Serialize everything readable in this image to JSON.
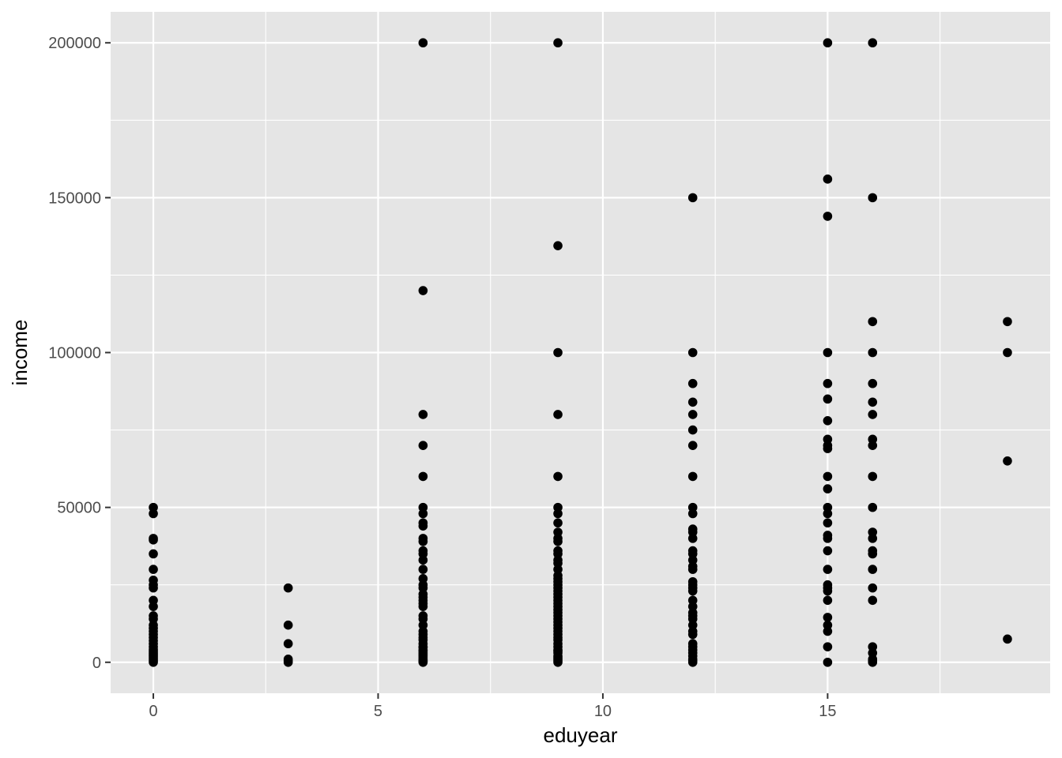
{
  "chart_data": {
    "type": "scatter",
    "title": "",
    "xlabel": "eduyear",
    "ylabel": "income",
    "xlim": [
      -0.95,
      19.95
    ],
    "ylim": [
      -10000,
      210000
    ],
    "x_ticks": [
      0,
      5,
      10,
      15
    ],
    "x_tick_labels": [
      "0",
      "5",
      "10",
      "15"
    ],
    "y_ticks": [
      0,
      50000,
      100000,
      150000,
      200000
    ],
    "y_tick_labels": [
      "0",
      "50000",
      "100000",
      "150000",
      "200000"
    ],
    "x_minor": [
      2.5,
      7.5,
      12.5,
      17.5
    ],
    "y_minor": [
      25000,
      75000,
      125000,
      175000
    ],
    "grid": true,
    "legend": "none",
    "colors": {
      "panel": "#e5e5e5",
      "grid": "#ffffff",
      "point": "#000000",
      "tick": "#4d4d4d",
      "tickmark": "#333333"
    },
    "points": [
      [
        0,
        0
      ],
      [
        0,
        500
      ],
      [
        0,
        1000
      ],
      [
        0,
        1500
      ],
      [
        0,
        2000
      ],
      [
        0,
        2500
      ],
      [
        0,
        3000
      ],
      [
        0,
        3600
      ],
      [
        0,
        4200
      ],
      [
        0,
        5000
      ],
      [
        0,
        6000
      ],
      [
        0,
        7000
      ],
      [
        0,
        8000
      ],
      [
        0,
        9000
      ],
      [
        0,
        10000
      ],
      [
        0,
        11000
      ],
      [
        0,
        12000
      ],
      [
        0,
        14000
      ],
      [
        0,
        15000
      ],
      [
        0,
        18000
      ],
      [
        0,
        20000
      ],
      [
        0,
        24000
      ],
      [
        0,
        25000
      ],
      [
        0,
        26500
      ],
      [
        0,
        30000
      ],
      [
        0,
        35000
      ],
      [
        0,
        39500
      ],
      [
        0,
        40000
      ],
      [
        0,
        48000
      ],
      [
        0,
        50000
      ],
      [
        3,
        0
      ],
      [
        3,
        500
      ],
      [
        3,
        1000
      ],
      [
        3,
        6000
      ],
      [
        3,
        12000
      ],
      [
        3,
        24000
      ],
      [
        6,
        0
      ],
      [
        6,
        300
      ],
      [
        6,
        600
      ],
      [
        6,
        1000
      ],
      [
        6,
        1500
      ],
      [
        6,
        2000
      ],
      [
        6,
        2500
      ],
      [
        6,
        3000
      ],
      [
        6,
        3600
      ],
      [
        6,
        4000
      ],
      [
        6,
        4800
      ],
      [
        6,
        5000
      ],
      [
        6,
        6000
      ],
      [
        6,
        7200
      ],
      [
        6,
        8000
      ],
      [
        6,
        9000
      ],
      [
        6,
        10000
      ],
      [
        6,
        12000
      ],
      [
        6,
        14000
      ],
      [
        6,
        15000
      ],
      [
        6,
        18000
      ],
      [
        6,
        19000
      ],
      [
        6,
        20000
      ],
      [
        6,
        21000
      ],
      [
        6,
        22000
      ],
      [
        6,
        24000
      ],
      [
        6,
        25000
      ],
      [
        6,
        27000
      ],
      [
        6,
        30000
      ],
      [
        6,
        33000
      ],
      [
        6,
        35000
      ],
      [
        6,
        36000
      ],
      [
        6,
        39000
      ],
      [
        6,
        40000
      ],
      [
        6,
        44000
      ],
      [
        6,
        45000
      ],
      [
        6,
        48000
      ],
      [
        6,
        50000
      ],
      [
        6,
        60000
      ],
      [
        6,
        70000
      ],
      [
        6,
        80000
      ],
      [
        6,
        120000
      ],
      [
        6,
        200000
      ],
      [
        9,
        0
      ],
      [
        9,
        500
      ],
      [
        9,
        1000
      ],
      [
        9,
        1500
      ],
      [
        9,
        2000
      ],
      [
        9,
        3000
      ],
      [
        9,
        3600
      ],
      [
        9,
        4000
      ],
      [
        9,
        5000
      ],
      [
        9,
        6000
      ],
      [
        9,
        7200
      ],
      [
        9,
        8000
      ],
      [
        9,
        9000
      ],
      [
        9,
        10000
      ],
      [
        9,
        11000
      ],
      [
        9,
        12000
      ],
      [
        9,
        13000
      ],
      [
        9,
        14000
      ],
      [
        9,
        15000
      ],
      [
        9,
        16000
      ],
      [
        9,
        17000
      ],
      [
        9,
        18000
      ],
      [
        9,
        19000
      ],
      [
        9,
        20000
      ],
      [
        9,
        21000
      ],
      [
        9,
        22000
      ],
      [
        9,
        23000
      ],
      [
        9,
        24000
      ],
      [
        9,
        25000
      ],
      [
        9,
        26000
      ],
      [
        9,
        27000
      ],
      [
        9,
        28000
      ],
      [
        9,
        30000
      ],
      [
        9,
        32000
      ],
      [
        9,
        33000
      ],
      [
        9,
        35000
      ],
      [
        9,
        36000
      ],
      [
        9,
        39000
      ],
      [
        9,
        40000
      ],
      [
        9,
        42000
      ],
      [
        9,
        45000
      ],
      [
        9,
        48000
      ],
      [
        9,
        50000
      ],
      [
        9,
        60000
      ],
      [
        9,
        80000
      ],
      [
        9,
        100000
      ],
      [
        9,
        134500
      ],
      [
        9,
        200000
      ],
      [
        12,
        0
      ],
      [
        12,
        600
      ],
      [
        12,
        1000
      ],
      [
        12,
        2000
      ],
      [
        12,
        3000
      ],
      [
        12,
        4000
      ],
      [
        12,
        5000
      ],
      [
        12,
        6000
      ],
      [
        12,
        9000
      ],
      [
        12,
        10000
      ],
      [
        12,
        12000
      ],
      [
        12,
        14000
      ],
      [
        12,
        15000
      ],
      [
        12,
        16000
      ],
      [
        12,
        18000
      ],
      [
        12,
        20000
      ],
      [
        12,
        23000
      ],
      [
        12,
        24000
      ],
      [
        12,
        25000
      ],
      [
        12,
        26000
      ],
      [
        12,
        30000
      ],
      [
        12,
        31000
      ],
      [
        12,
        33000
      ],
      [
        12,
        35000
      ],
      [
        12,
        36000
      ],
      [
        12,
        40000
      ],
      [
        12,
        42000
      ],
      [
        12,
        43000
      ],
      [
        12,
        48000
      ],
      [
        12,
        50000
      ],
      [
        12,
        60000
      ],
      [
        12,
        70000
      ],
      [
        12,
        75000
      ],
      [
        12,
        80000
      ],
      [
        12,
        84000
      ],
      [
        12,
        90000
      ],
      [
        12,
        100000
      ],
      [
        12,
        150000
      ],
      [
        15,
        0
      ],
      [
        15,
        5000
      ],
      [
        15,
        10000
      ],
      [
        15,
        12000
      ],
      [
        15,
        14500
      ],
      [
        15,
        20000
      ],
      [
        15,
        23000
      ],
      [
        15,
        24000
      ],
      [
        15,
        25000
      ],
      [
        15,
        30000
      ],
      [
        15,
        36000
      ],
      [
        15,
        40000
      ],
      [
        15,
        41000
      ],
      [
        15,
        45000
      ],
      [
        15,
        48000
      ],
      [
        15,
        50000
      ],
      [
        15,
        56000
      ],
      [
        15,
        60000
      ],
      [
        15,
        69000
      ],
      [
        15,
        70000
      ],
      [
        15,
        72000
      ],
      [
        15,
        78000
      ],
      [
        15,
        85000
      ],
      [
        15,
        90000
      ],
      [
        15,
        100000
      ],
      [
        15,
        144000
      ],
      [
        15,
        156000
      ],
      [
        15,
        200000
      ],
      [
        16,
        0
      ],
      [
        16,
        500
      ],
      [
        16,
        1000
      ],
      [
        16,
        3000
      ],
      [
        16,
        5000
      ],
      [
        16,
        20000
      ],
      [
        16,
        24000
      ],
      [
        16,
        30000
      ],
      [
        16,
        35000
      ],
      [
        16,
        36000
      ],
      [
        16,
        40000
      ],
      [
        16,
        42000
      ],
      [
        16,
        50000
      ],
      [
        16,
        60000
      ],
      [
        16,
        70000
      ],
      [
        16,
        72000
      ],
      [
        16,
        80000
      ],
      [
        16,
        84000
      ],
      [
        16,
        90000
      ],
      [
        16,
        100000
      ],
      [
        16,
        110000
      ],
      [
        16,
        150000
      ],
      [
        16,
        200000
      ],
      [
        19,
        7500
      ],
      [
        19,
        65000
      ],
      [
        19,
        100000
      ],
      [
        19,
        110000
      ]
    ]
  }
}
